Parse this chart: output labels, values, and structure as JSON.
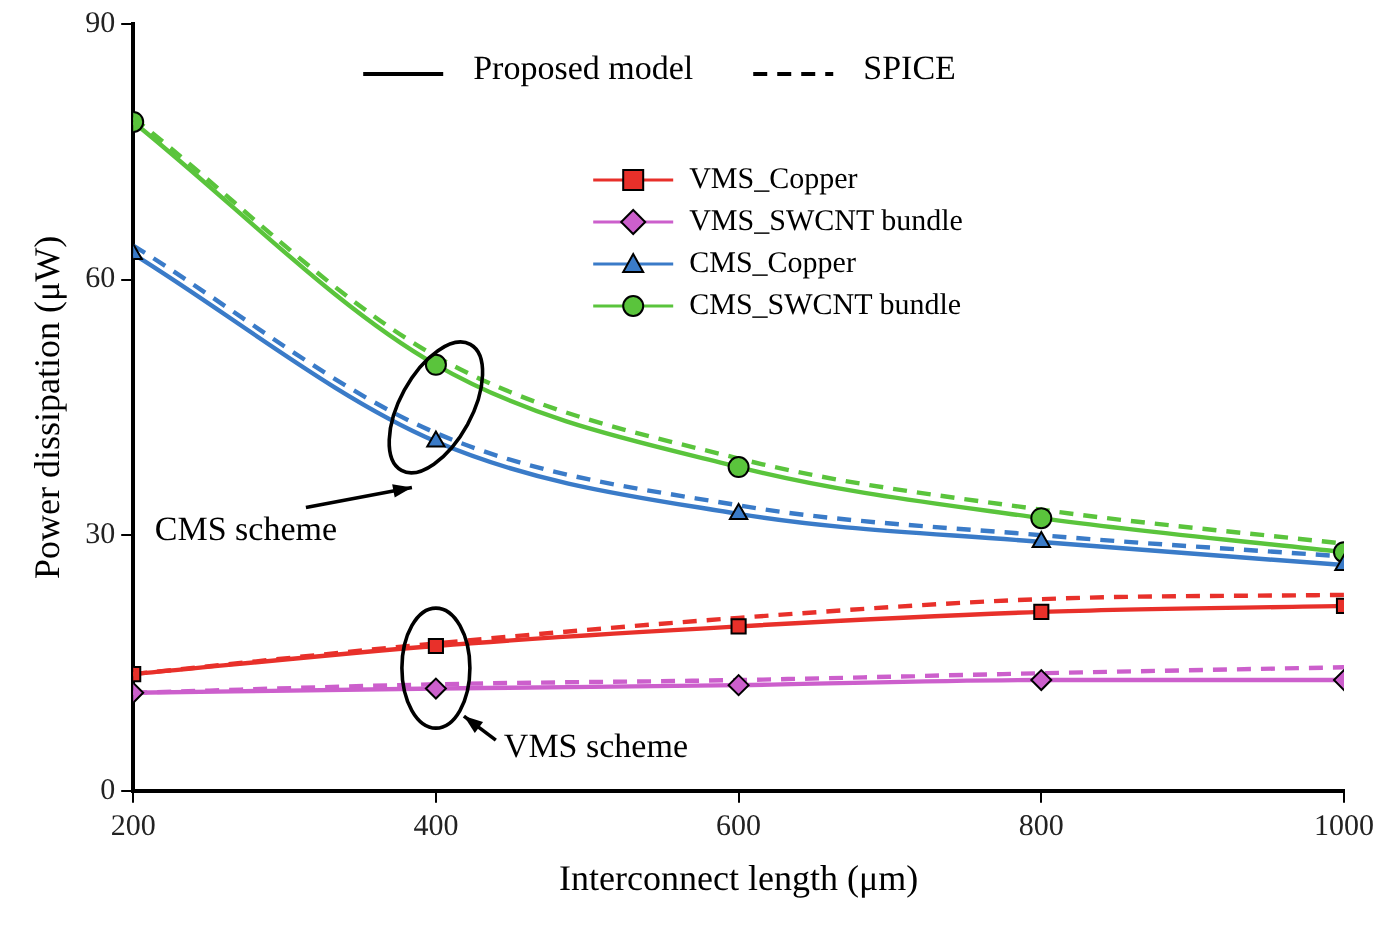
{
  "chart_data": {
    "type": "line",
    "xlabel": "Interconnect length (μm)",
    "ylabel": "Power dissipation (μW)",
    "x": [
      200,
      400,
      600,
      800,
      1000
    ],
    "xlim": [
      200,
      1000
    ],
    "xticks": [
      200,
      400,
      600,
      800,
      1000
    ],
    "ylim": [
      0,
      90
    ],
    "yticks": [
      0,
      30,
      60,
      90
    ],
    "grid": false,
    "legend": "top right",
    "series": [
      {
        "name": "VMS_Copper",
        "color": "#e8302a",
        "marker": "square",
        "line_style": "solid",
        "values": [
          13.7,
          17,
          19.3,
          21,
          21.7
        ]
      },
      {
        "name": "VMS_SWCNT bundle",
        "color": "#cc5fcc",
        "marker": "diamond",
        "line_style": "solid",
        "values": [
          11.5,
          12,
          12.4,
          13,
          13
        ]
      },
      {
        "name": "CMS_Copper",
        "color": "#3a7bc8",
        "marker": "triangle",
        "line_style": "solid",
        "values": [
          63,
          41,
          32.5,
          29.2,
          26.5
        ]
      },
      {
        "name": "CMS_SWCNT bundle",
        "color": "#5ac43c",
        "marker": "circle",
        "line_style": "solid",
        "values": [
          78.5,
          50,
          38,
          32,
          28
        ]
      },
      {
        "color": "#e8302a",
        "marker": "none",
        "line_style": "dashed",
        "values": [
          13.7,
          17.3,
          20.3,
          22.5,
          23
        ]
      },
      {
        "color": "#cc5fcc",
        "marker": "none",
        "line_style": "dashed",
        "values": [
          11.5,
          12.5,
          13,
          13.8,
          14.5
        ]
      },
      {
        "color": "#3a7bc8",
        "marker": "none",
        "line_style": "dashed",
        "values": [
          64,
          42,
          33.5,
          30,
          27.5
        ]
      },
      {
        "color": "#5ac43c",
        "marker": "none",
        "line_style": "dashed",
        "values": [
          79,
          51,
          39,
          33,
          29
        ]
      }
    ],
    "annotations": [
      "Proposed model",
      "SPICE",
      "CMS scheme",
      "VMS scheme"
    ]
  }
}
